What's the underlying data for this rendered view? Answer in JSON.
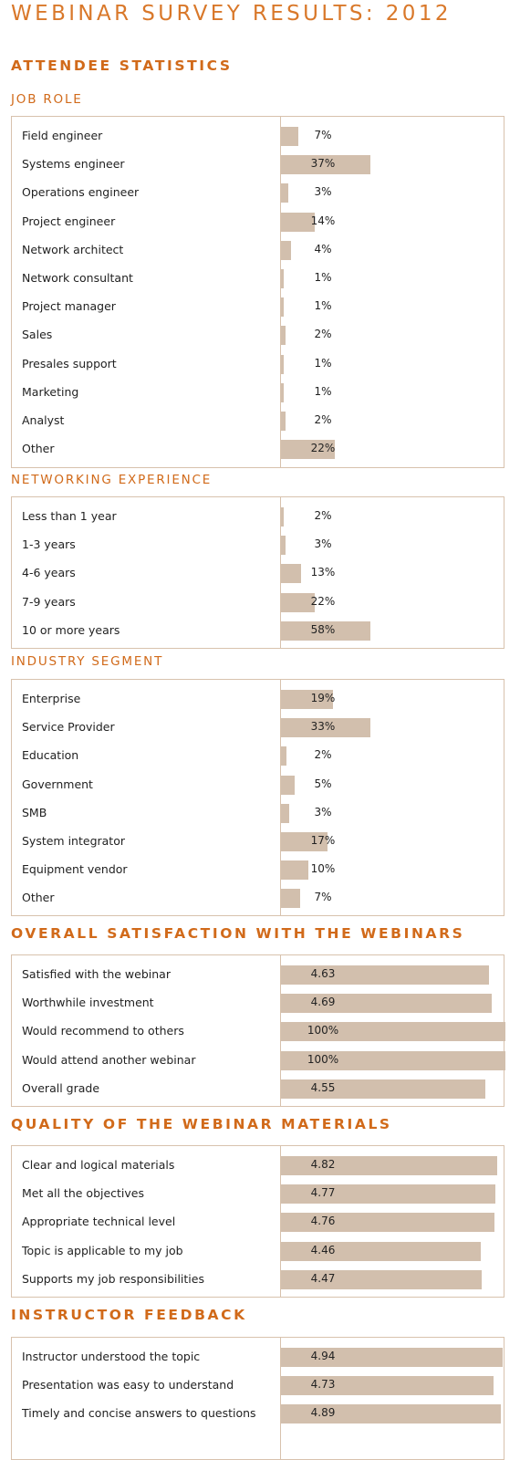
{
  "title": "WEBINAR SURVEY RESULTS: 2012",
  "colors": {
    "accent": "#d16a1a",
    "bar": "#d2bfad",
    "border": "#d8c2ad"
  },
  "chart_data": [
    {
      "type": "bar",
      "heading": "ATTENDEE STATISTICS",
      "title": "JOB ROLE",
      "categories": [
        "Field engineer",
        "Systems engineer",
        "Operations engineer",
        "Project engineer",
        "Network architect",
        "Network consultant",
        "Project manager",
        "Sales",
        "Presales support",
        "Marketing",
        "Analyst",
        "Other"
      ],
      "values": [
        7,
        37,
        3,
        14,
        4,
        1,
        1,
        2,
        1,
        1,
        2,
        22
      ],
      "labels": [
        "7%",
        "37%",
        "3%",
        "14%",
        "4%",
        "1%",
        "1%",
        "2%",
        "1%",
        "1%",
        "2%",
        "22%"
      ],
      "unit": "%",
      "max": 37
    },
    {
      "type": "bar",
      "title": "NETWORKING EXPERIENCE",
      "categories": [
        "Less than 1 year",
        "1-3 years",
        "4-6 years",
        "7-9 years",
        "10 or more years"
      ],
      "values": [
        2,
        3,
        13,
        22,
        58
      ],
      "labels": [
        "2%",
        "3%",
        "13%",
        "22%",
        "58%"
      ],
      "unit": "%",
      "max": 58
    },
    {
      "type": "bar",
      "title": "INDUSTRY SEGMENT",
      "categories": [
        "Enterprise",
        "Service Provider",
        "Education",
        "Government",
        "SMB",
        "System integrator",
        "Equipment vendor",
        "Other"
      ],
      "values": [
        19,
        33,
        2,
        5,
        3,
        17,
        10,
        7
      ],
      "labels": [
        "19%",
        "33%",
        "2%",
        "5%",
        "3%",
        "17%",
        "10%",
        "7%"
      ],
      "unit": "%",
      "max": 33
    },
    {
      "type": "bar",
      "heading": "OVERALL SATISFACTION WITH THE WEBINARS",
      "categories": [
        "Satisfied with the webinar",
        "Worthwhile investment",
        "Would recommend to others",
        "Would attend another webinar",
        "Overall grade"
      ],
      "values": [
        4.63,
        4.69,
        100,
        100,
        4.55
      ],
      "fractions": [
        0.926,
        0.938,
        1.0,
        1.0,
        0.91
      ],
      "labels": [
        "4.63",
        "4.69",
        "100%",
        "100%",
        "4.55"
      ],
      "max": 5
    },
    {
      "type": "bar",
      "heading": "QUALITY OF THE WEBINAR MATERIALS",
      "categories": [
        "Clear and logical materials",
        "Met all the objectives",
        "Appropriate technical level",
        "Topic is applicable to my job",
        "Supports my job responsibilities"
      ],
      "values": [
        4.82,
        4.77,
        4.76,
        4.46,
        4.47
      ],
      "labels": [
        "4.82",
        "4.77",
        "4.76",
        "4.46",
        "4.47"
      ],
      "max": 5
    },
    {
      "type": "bar",
      "heading": "INSTRUCTOR FEEDBACK",
      "categories": [
        "Instructor understood the topic",
        "Presentation was easy to understand",
        "Timely and concise answers to questions"
      ],
      "values": [
        4.94,
        4.73,
        4.89
      ],
      "labels": [
        "4.94",
        "4.73",
        "4.89"
      ],
      "max": 5
    }
  ]
}
